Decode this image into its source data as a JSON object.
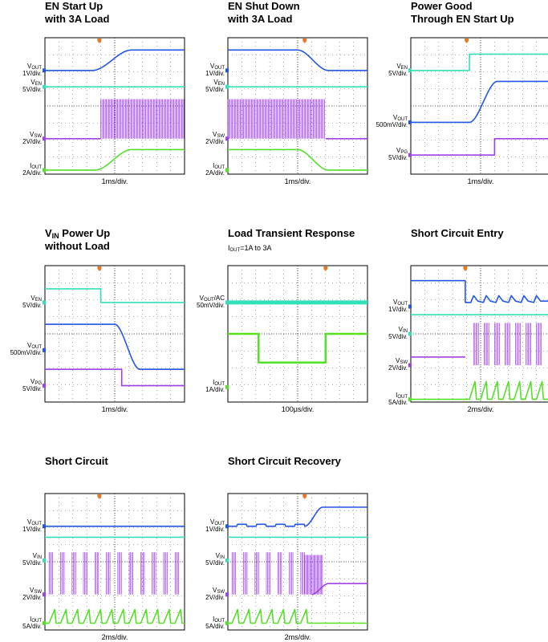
{
  "colors": {
    "vout": "#2356e6",
    "en": "#33e0b8",
    "vsw": "#a040e8",
    "iout": "#55e028",
    "grid": "#666666",
    "trigger": "#ee7722"
  },
  "chart_data": [
    {
      "type": "line",
      "title_lines": [
        "EN Start Up",
        "with 3A Load"
      ],
      "subtitle": "",
      "timebase": "1ms/div.",
      "series": [
        {
          "id": "vout",
          "label": "VOUT",
          "sub": "OUT",
          "scale": "1V/div.",
          "color": "#2356e6"
        },
        {
          "id": "en",
          "label": "VEN",
          "sub": "EN",
          "scale": "5V/div.",
          "color": "#33e0b8"
        },
        {
          "id": "vsw",
          "label": "VSW",
          "sub": "SW",
          "scale": "2V/div.",
          "color": "#a040e8"
        },
        {
          "id": "iout",
          "label": "IOUT",
          "sub": "OUT",
          "scale": "2A/div.",
          "color": "#55e028"
        }
      ]
    },
    {
      "type": "line",
      "title_lines": [
        "EN Shut Down",
        "with 3A Load"
      ],
      "subtitle": "",
      "timebase": "1ms/div.",
      "series": [
        {
          "id": "vout",
          "label": "VOUT",
          "sub": "OUT",
          "scale": "1V/div.",
          "color": "#2356e6"
        },
        {
          "id": "en",
          "label": "VEN",
          "sub": "EN",
          "scale": "5V/div.",
          "color": "#33e0b8"
        },
        {
          "id": "vsw",
          "label": "VSW",
          "sub": "SW",
          "scale": "2V/div.",
          "color": "#a040e8"
        },
        {
          "id": "iout",
          "label": "IOUT",
          "sub": "OUT",
          "scale": "2A/div.",
          "color": "#55e028"
        }
      ]
    },
    {
      "type": "line",
      "title_lines": [
        "Power Good",
        "Through EN Start Up"
      ],
      "subtitle": "",
      "timebase": "1ms/div.",
      "series": [
        {
          "id": "en",
          "label": "VEN",
          "sub": "EN",
          "scale": "5V/div.",
          "color": "#33e0b8"
        },
        {
          "id": "vout",
          "label": "VOUT",
          "sub": "OUT",
          "scale": "500mV/div.",
          "color": "#2356e6"
        },
        {
          "id": "pg",
          "label": "VPG",
          "sub": "PG",
          "scale": "5V/div.",
          "color": "#a040e8"
        }
      ]
    },
    {
      "type": "line",
      "title_lines": [
        "VIN Power Up",
        "without Load"
      ],
      "subtitle": "",
      "timebase": "1ms/div.",
      "series": [
        {
          "id": "vin",
          "label": "VEN",
          "sub": "EN",
          "scale": "5V/div.",
          "color": "#33e0b8"
        },
        {
          "id": "vout",
          "label": "VOUT",
          "sub": "OUT",
          "scale": "500mV/div.",
          "color": "#2356e6"
        },
        {
          "id": "pg",
          "label": "VPG",
          "sub": "PG",
          "scale": "5V/div.",
          "color": "#a040e8"
        }
      ]
    },
    {
      "type": "line",
      "title_lines": [
        "Load Transient Response",
        ""
      ],
      "subtitle": "IOUT=1A to 3A",
      "timebase": "100μs/div.",
      "series": [
        {
          "id": "vout",
          "label": "VOUT/AC",
          "sub": "OUT",
          "scale": "50mV/div.",
          "color": "#33e0b8"
        },
        {
          "id": "iout",
          "label": "IOUT",
          "sub": "OUT",
          "scale": "1A/div.",
          "color": "#55e028"
        }
      ]
    },
    {
      "type": "line",
      "title_lines": [
        "Short Circuit Entry",
        ""
      ],
      "subtitle": "",
      "timebase": "2ms/div.",
      "series": [
        {
          "id": "vout",
          "label": "VOUT",
          "sub": "OUT",
          "scale": "1V/div.",
          "color": "#2356e6"
        },
        {
          "id": "vin",
          "label": "VIN",
          "sub": "IN",
          "scale": "5V/div.",
          "color": "#33e0b8"
        },
        {
          "id": "vsw",
          "label": "VSW",
          "sub": "SW",
          "scale": "2V/div.",
          "color": "#a040e8"
        },
        {
          "id": "iout",
          "label": "IOUT",
          "sub": "OUT",
          "scale": "5A/div.",
          "color": "#55e028"
        }
      ]
    },
    {
      "type": "line",
      "title_lines": [
        "Short Circuit",
        ""
      ],
      "subtitle": "",
      "timebase": "2ms/div.",
      "series": [
        {
          "id": "vout",
          "label": "VOUT",
          "sub": "OUT",
          "scale": "1V/div.",
          "color": "#2356e6"
        },
        {
          "id": "vin",
          "label": "VIN",
          "sub": "IN",
          "scale": "5V/div.",
          "color": "#33e0b8"
        },
        {
          "id": "vsw",
          "label": "VSW",
          "sub": "SW",
          "scale": "2V/div.",
          "color": "#a040e8"
        },
        {
          "id": "iout",
          "label": "IOUT",
          "sub": "OUT",
          "scale": "5A/div.",
          "color": "#55e028"
        }
      ]
    },
    {
      "type": "line",
      "title_lines": [
        "Short Circuit Recovery",
        ""
      ],
      "subtitle": "",
      "timebase": "2ms/div.",
      "series": [
        {
          "id": "vout",
          "label": "VOUT",
          "sub": "OUT",
          "scale": "1V/div.",
          "color": "#2356e6"
        },
        {
          "id": "vin",
          "label": "VIN",
          "sub": "IN",
          "scale": "5V/div.",
          "color": "#33e0b8"
        },
        {
          "id": "vsw",
          "label": "VSW",
          "sub": "SW",
          "scale": "2V/div.",
          "color": "#a040e8"
        },
        {
          "id": "iout",
          "label": "IOUT",
          "sub": "OUT",
          "scale": "5A/div.",
          "color": "#55e028"
        }
      ]
    }
  ]
}
